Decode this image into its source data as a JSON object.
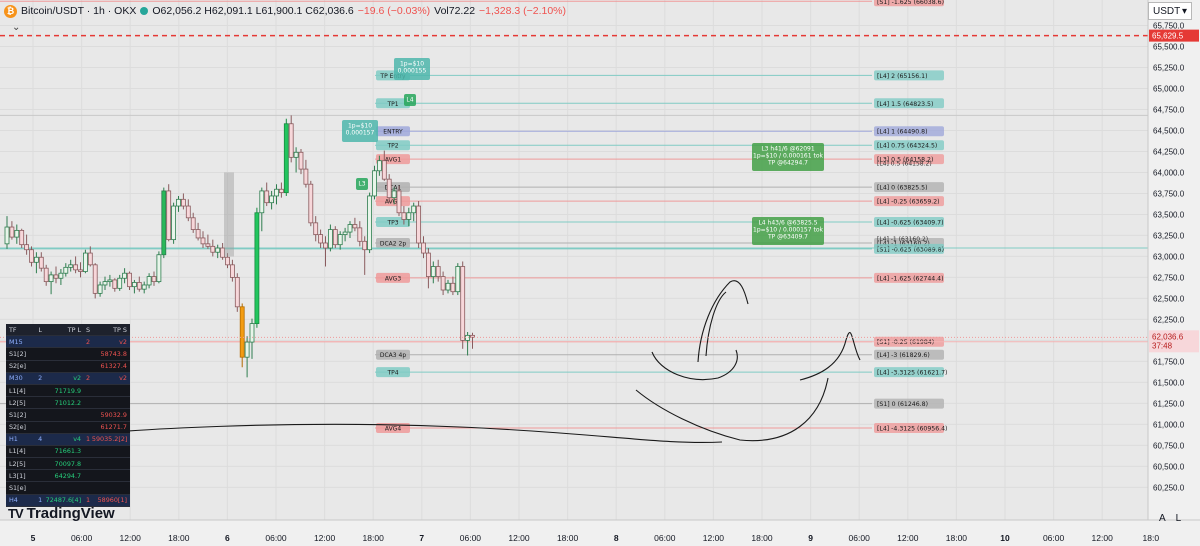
{
  "header": {
    "symbol": "Bitcoin/USDT · 1h · OKX",
    "coin_icon": "bitcoin-icon",
    "ohlc": "O62,056.2 H62,091.1 L61,900.1 C62,036.6",
    "change": "−19.6 (−0.03%)",
    "volume": "Vol72.22",
    "vol_change": "−1,328.3 (−2.10%)"
  },
  "currency_button": "USDT",
  "brand": "TradingView",
  "scale_buttons": [
    "A",
    "L"
  ],
  "colors": {
    "up": "#26d07c",
    "down": "#ef5350",
    "background": "#e8e8e8",
    "last_price": "#e53935"
  },
  "chart_data": {
    "type": "candlestick",
    "y_ticks": [
      60250,
      60500,
      60750,
      61000,
      61250,
      61500,
      61750,
      62000,
      62250,
      62500,
      62750,
      63000,
      63250,
      63500,
      63750,
      64000,
      64250,
      64500,
      64750,
      65000,
      65250,
      65500,
      65750
    ],
    "ylim": [
      60150,
      66150
    ],
    "x_tick_labels": [
      "5",
      "06:00",
      "12:00",
      "18:00",
      "6",
      "06:00",
      "12:00",
      "18:00",
      "7",
      "06:00",
      "12:00",
      "18:00",
      "8",
      "06:00",
      "12:00",
      "18:00",
      "9",
      "06:00",
      "12:00",
      "18:00",
      "10",
      "06:00",
      "12:00",
      "18:0"
    ],
    "last_price": 62036.6,
    "last_price_countdown": "37:48",
    "last_price_label": "62,036.6",
    "dashed_price": 65629.5,
    "dashed_price_label": "65,629.5",
    "levels": [
      {
        "label": "[S1] -1.625  (66038.6)",
        "price": 66038.6,
        "color": "#ef9a9a",
        "left": null
      },
      {
        "label": "[L4] 2  (65156.1)",
        "price": 65156.1,
        "color": "#80cbc4",
        "left": "TP Entry"
      },
      {
        "label": "[L4] 1.5  (64823.5)",
        "price": 64823.5,
        "color": "#80cbc4",
        "left": "TP1"
      },
      {
        "label": "[L4] 1  (64490.8)",
        "price": 64490.8,
        "color": "#9fa8da",
        "left": "ENTRY"
      },
      {
        "label": "[L4] 0.75  (64324.5)",
        "price": 64324.5,
        "color": "#80cbc4",
        "left": "TP2"
      },
      {
        "label": "[L3] 0.5  (64158.2)",
        "price": 64158.2,
        "color": "#ef9a9a",
        "left": "AVG1"
      },
      {
        "label": "[L4] 0  (63825.5)",
        "price": 63825.5,
        "color": "#b0b0b0",
        "left": "DCA1"
      },
      {
        "label": "[L4] -0.25  (63659.2)",
        "price": 63659.2,
        "color": "#ef9a9a",
        "left": "AVG2"
      },
      {
        "label": "[L4] -0.625  (63409.7)",
        "price": 63409.7,
        "color": "#80cbc4",
        "left": "TP3"
      },
      {
        "label": "[L4] -1  (63160.2)",
        "price": 63160.2,
        "color": "#b0b0b0",
        "left": "DCA2  2p"
      },
      {
        "label": "[S1] -0.625  (63089.8)",
        "price": 63089.8,
        "color": "#80cbc4",
        "left": null
      },
      {
        "label": "[L4] -1.625  (62744.4)",
        "price": 62744.4,
        "color": "#ef9a9a",
        "left": "AVG3"
      },
      {
        "label": "[S1] -0.25  (61984)",
        "price": 61984,
        "color": "#ef9a9a",
        "left": null
      },
      {
        "label": "[L4] -3  (61829.6)",
        "price": 61829.6,
        "color": "#b0b0b0",
        "left": "DCA3  4p"
      },
      {
        "label": "[L4] -3.3125  (61621.7)",
        "price": 61621.7,
        "color": "#80cbc4",
        "left": "TP4"
      },
      {
        "label": "[S1] 0  (61246.8)",
        "price": 61246.8,
        "color": "#b0b0b0",
        "left": null
      },
      {
        "label": "[L4] -4.3125  (60956.4)",
        "price": 60956.4,
        "color": "#ef9a9a",
        "left": "AVG4"
      }
    ],
    "overlap_label": "[L4] 0.5  (64158.2)",
    "overlap_label_2": "[L4] -1  (63160.2)",
    "annotations": [
      {
        "lines": [
          "1p=$10",
          "0.000155"
        ],
        "color": "#4db6ac"
      },
      {
        "lines": [
          "1p=$10",
          "0.000157"
        ],
        "color": "#4db6ac"
      },
      {
        "lines": [
          "L4"
        ],
        "color": "#26a65b"
      },
      {
        "lines": [
          "L3"
        ],
        "color": "#26a65b"
      },
      {
        "lines": [
          "L3 h41/6 @62091",
          "1p=$10 / 0.000161 tok",
          "TP @64294.7"
        ],
        "color": "#43a047"
      },
      {
        "lines": [
          "L4 h43/6 @63825.5",
          "1p=$10 / 0.000157 tok",
          "TP @63409.7"
        ],
        "color": "#43a047"
      }
    ],
    "candles": [
      [
        63150,
        63480,
        63090,
        63350
      ],
      [
        63350,
        63420,
        63200,
        63230
      ],
      [
        63230,
        63380,
        63150,
        63310
      ],
      [
        63310,
        63330,
        63100,
        63140
      ],
      [
        63140,
        63260,
        63020,
        63080
      ],
      [
        63080,
        63120,
        62880,
        62930
      ],
      [
        62930,
        63050,
        62800,
        62990
      ],
      [
        62990,
        63050,
        62820,
        62860
      ],
      [
        62860,
        62900,
        62650,
        62700
      ],
      [
        62700,
        62820,
        62550,
        62780
      ],
      [
        62780,
        62880,
        62680,
        62740
      ],
      [
        62740,
        62850,
        62660,
        62800
      ],
      [
        62800,
        62920,
        62760,
        62870
      ],
      [
        62870,
        62960,
        62820,
        62900
      ],
      [
        62900,
        63000,
        62800,
        62840
      ],
      [
        62840,
        62930,
        62750,
        62820
      ],
      [
        62820,
        63080,
        62800,
        63040
      ],
      [
        63040,
        63120,
        62880,
        62900
      ],
      [
        62900,
        62920,
        62500,
        62560
      ],
      [
        62560,
        62700,
        62520,
        62660
      ],
      [
        62660,
        62760,
        62600,
        62700
      ],
      [
        62700,
        62780,
        62640,
        62720
      ],
      [
        62720,
        62740,
        62580,
        62620
      ],
      [
        62620,
        62780,
        62590,
        62740
      ],
      [
        62740,
        62860,
        62680,
        62800
      ],
      [
        62800,
        62820,
        62600,
        62640
      ],
      [
        62640,
        62720,
        62560,
        62690
      ],
      [
        62690,
        62760,
        62580,
        62610
      ],
      [
        62610,
        62700,
        62560,
        62660
      ],
      [
        62660,
        62800,
        62620,
        62760
      ],
      [
        62760,
        62820,
        62650,
        62700
      ],
      [
        62700,
        63060,
        62680,
        63020
      ],
      [
        63020,
        63820,
        62980,
        63780
      ],
      [
        63780,
        63860,
        63180,
        63200
      ],
      [
        63200,
        63640,
        63150,
        63600
      ],
      [
        63600,
        63720,
        63530,
        63680
      ],
      [
        63680,
        63750,
        63560,
        63600
      ],
      [
        63600,
        63680,
        63420,
        63460
      ],
      [
        63460,
        63520,
        63280,
        63320
      ],
      [
        63320,
        63400,
        63190,
        63220
      ],
      [
        63220,
        63300,
        63100,
        63150
      ],
      [
        63150,
        63260,
        63090,
        63120
      ],
      [
        63120,
        63200,
        63000,
        63050
      ],
      [
        63050,
        63140,
        62980,
        63100
      ],
      [
        63100,
        63160,
        62960,
        62990
      ],
      [
        62990,
        63040,
        62860,
        62900
      ],
      [
        62900,
        62960,
        62700,
        62750
      ],
      [
        62750,
        62800,
        62340,
        62400
      ],
      [
        62400,
        62440,
        61680,
        61800
      ],
      [
        61800,
        62050,
        61560,
        61980
      ],
      [
        61980,
        62260,
        61780,
        62200
      ],
      [
        62200,
        63580,
        62150,
        63520
      ],
      [
        63520,
        63820,
        63300,
        63780
      ],
      [
        63780,
        63880,
        63600,
        63640
      ],
      [
        63640,
        63780,
        63560,
        63720
      ],
      [
        63720,
        63860,
        63620,
        63800
      ],
      [
        63800,
        63880,
        63700,
        63760
      ],
      [
        63760,
        64640,
        63720,
        64580
      ],
      [
        64580,
        64680,
        64120,
        64180
      ],
      [
        64180,
        64300,
        64000,
        64240
      ],
      [
        64240,
        64280,
        63980,
        64040
      ],
      [
        64040,
        64150,
        63820,
        63860
      ],
      [
        63860,
        63900,
        63360,
        63400
      ],
      [
        63400,
        63480,
        63180,
        63260
      ],
      [
        63260,
        63320,
        63100,
        63160
      ],
      [
        63160,
        63240,
        62880,
        63100
      ],
      [
        63100,
        63380,
        63060,
        63320
      ],
      [
        63320,
        63360,
        63100,
        63140
      ],
      [
        63140,
        63300,
        63080,
        63260
      ],
      [
        63260,
        63340,
        63180,
        63290
      ],
      [
        63290,
        63420,
        63220,
        63380
      ],
      [
        63380,
        63460,
        63300,
        63340
      ],
      [
        63340,
        63420,
        63120,
        63180
      ],
      [
        63180,
        63240,
        62780,
        63080
      ],
      [
        63080,
        63760,
        63040,
        63720
      ],
      [
        63720,
        64080,
        63680,
        64020
      ],
      [
        64020,
        64200,
        63960,
        64140
      ],
      [
        64140,
        64260,
        63900,
        63920
      ],
      [
        63920,
        63980,
        63640,
        63700
      ],
      [
        63700,
        63820,
        63620,
        63780
      ],
      [
        63780,
        63840,
        63480,
        63520
      ],
      [
        63520,
        63600,
        63380,
        63440
      ],
      [
        63440,
        63580,
        63360,
        63520
      ],
      [
        63520,
        63640,
        63420,
        63600
      ],
      [
        63600,
        63660,
        63100,
        63160
      ],
      [
        63160,
        63240,
        62980,
        63040
      ],
      [
        63040,
        63100,
        62620,
        62760
      ],
      [
        62760,
        62940,
        62680,
        62880
      ],
      [
        62880,
        62960,
        62700,
        62760
      ],
      [
        62760,
        62820,
        62540,
        62600
      ],
      [
        62600,
        62720,
        62560,
        62680
      ],
      [
        62680,
        62760,
        62540,
        62580
      ],
      [
        62580,
        62920,
        62540,
        62880
      ],
      [
        62880,
        62940,
        61900,
        62000
      ],
      [
        62000,
        62100,
        61820,
        62060
      ],
      [
        62060,
        62091,
        61900,
        62037
      ]
    ]
  },
  "table": {
    "header": [
      "TF",
      "L",
      "TP L",
      "S",
      "TP S"
    ],
    "rows": [
      {
        "c": [
          "M15",
          "",
          "",
          "2",
          "v2"
        ],
        "sec": true
      },
      {
        "c": [
          "S1[2]",
          "",
          "",
          "",
          "58743.8"
        ]
      },
      {
        "c": [
          "S2[e]",
          "",
          "",
          "",
          "61327.4"
        ]
      },
      {
        "c": [
          "M30",
          "2",
          "v2",
          "2",
          "v2"
        ],
        "sec": true
      },
      {
        "c": [
          "L1[4]",
          "",
          "71719.9",
          "",
          ""
        ]
      },
      {
        "c": [
          "L2[5]",
          "",
          "71012.2",
          "",
          ""
        ]
      },
      {
        "c": [
          "S1[2]",
          "",
          "",
          "",
          "59032.9"
        ]
      },
      {
        "c": [
          "S2[e]",
          "",
          "",
          "",
          "61271.7"
        ]
      },
      {
        "c": [
          "H1",
          "4",
          "v4",
          "1",
          "59035.2[2]"
        ],
        "sec": true
      },
      {
        "c": [
          "L1[4]",
          "",
          "71661.3",
          "",
          ""
        ]
      },
      {
        "c": [
          "L2[5]",
          "",
          "70097.8",
          "",
          ""
        ]
      },
      {
        "c": [
          "L3[1]",
          "",
          "64294.7",
          "",
          ""
        ]
      },
      {
        "c": [
          "S1[e]",
          "",
          "",
          "",
          ""
        ]
      },
      {
        "c": [
          "H4",
          "1",
          "72487.6[4]",
          "1",
          "58960[1]"
        ],
        "sec": true
      }
    ]
  }
}
